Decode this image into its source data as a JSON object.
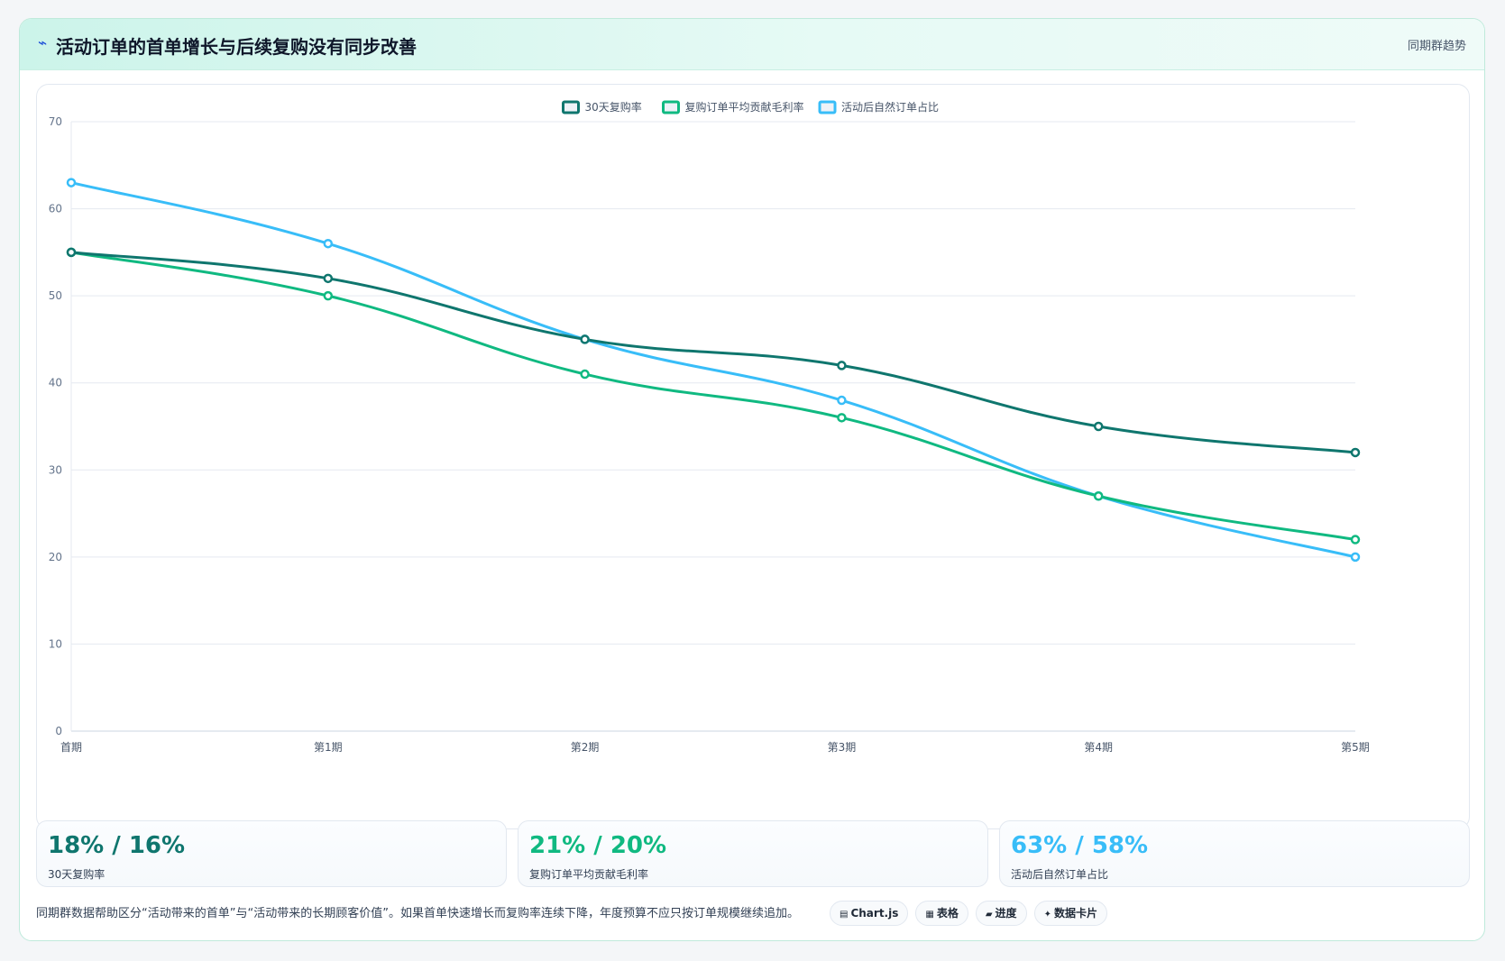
{
  "header": {
    "icon": "trend-icon",
    "icon_glyph": "⌁",
    "title": "活动订单的首单增长与后续复购没有同步改善",
    "right_label": "同期群趋势"
  },
  "chart_data": {
    "type": "line",
    "title": "",
    "xlabel": "",
    "ylabel": "",
    "categories": [
      "首期",
      "第1期",
      "第2期",
      "第3期",
      "第4期",
      "第5期"
    ],
    "ylim": [
      0,
      70
    ],
    "yticks": [
      0,
      10,
      20,
      30,
      40,
      50,
      60,
      70
    ],
    "grid": true,
    "legend_position": "top-center",
    "series": [
      {
        "name": "30天复购率",
        "color": "#0f766e",
        "values": [
          55,
          52,
          45,
          42,
          35,
          32
        ]
      },
      {
        "name": "复购订单平均贡献毛利率",
        "color": "#10b981",
        "values": [
          55,
          50,
          41,
          36,
          27,
          22
        ]
      },
      {
        "name": "活动后自然订单占比",
        "color": "#38bdf8",
        "values": [
          63,
          56,
          45,
          38,
          27,
          20
        ]
      }
    ]
  },
  "stats": [
    {
      "value": "18% / 16%",
      "label": "30天复购率",
      "color": "#0f766e"
    },
    {
      "value": "21% / 20%",
      "label": "复购订单平均贡献毛利率",
      "color": "#10b981"
    },
    {
      "value": "63% / 58%",
      "label": "活动后自然订单占比",
      "color": "#38bdf8"
    }
  ],
  "footer": {
    "note": "同期群数据帮助区分“活动带来的首单”与“活动带来的长期顾客价值”。如果首单快速增长而复购率连续下降，年度预算不应只按订单规模继续追加。",
    "pills": [
      {
        "icon": "chart-icon",
        "glyph": "▤",
        "label": "Chart.js"
      },
      {
        "icon": "table-icon",
        "glyph": "▦",
        "label": "表格"
      },
      {
        "icon": "progress-icon",
        "glyph": "▰",
        "label": "进度"
      },
      {
        "icon": "sparkle-icon",
        "glyph": "✦",
        "label": "数据卡片"
      }
    ]
  }
}
